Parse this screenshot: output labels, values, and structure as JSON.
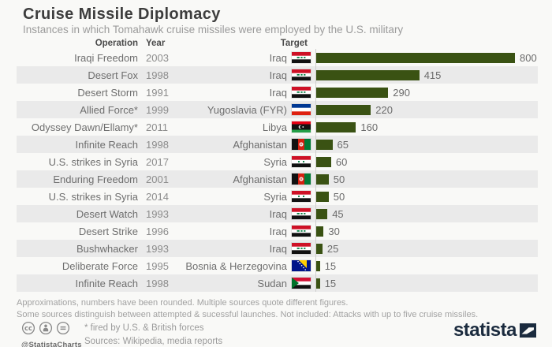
{
  "header": {
    "title": "Cruise Missile Diplomacy",
    "subtitle": "Instances in which Tomahawk cruise missiles were employed by the U.S. military"
  },
  "columns": {
    "operation": "Operation",
    "year": "Year",
    "target": "Target"
  },
  "chart_data": {
    "type": "bar",
    "orientation": "horizontal",
    "title": "Cruise Missile Diplomacy",
    "bar_color": "#3a5213",
    "value_range": [
      0,
      800
    ],
    "legend": "none",
    "grid": "off",
    "rows": [
      {
        "operation": "Iraqi Freedom",
        "year": "2003",
        "target": "Iraq",
        "flag": "iraq",
        "value": 800
      },
      {
        "operation": "Desert Fox",
        "year": "1998",
        "target": "Iraq",
        "flag": "iraq",
        "value": 415
      },
      {
        "operation": "Desert Storm",
        "year": "1991",
        "target": "Iraq",
        "flag": "iraq",
        "value": 290
      },
      {
        "operation": "Allied Force*",
        "year": "1999",
        "target": "Yugoslavia (FYR)",
        "flag": "yugoslavia",
        "value": 220
      },
      {
        "operation": "Odyssey Dawn/Ellamy*",
        "year": "2011",
        "target": "Libya",
        "flag": "libya",
        "value": 160
      },
      {
        "operation": "Infinite Reach",
        "year": "1998",
        "target": "Afghanistan",
        "flag": "afghanistan",
        "value": 65
      },
      {
        "operation": "U.S. strikes in Syria",
        "year": "2017",
        "target": "Syria",
        "flag": "syria",
        "value": 60
      },
      {
        "operation": "Enduring Freedom",
        "year": "2001",
        "target": "Afghanistan",
        "flag": "afghanistan",
        "value": 50
      },
      {
        "operation": "U.S. strikes in Syria",
        "year": "2014",
        "target": "Syria",
        "flag": "syria",
        "value": 50
      },
      {
        "operation": "Desert Watch",
        "year": "1993",
        "target": "Iraq",
        "flag": "iraq",
        "value": 45
      },
      {
        "operation": "Desert Strike",
        "year": "1996",
        "target": "Iraq",
        "flag": "iraq",
        "value": 30
      },
      {
        "operation": "Bushwhacker",
        "year": "1993",
        "target": "Iraq",
        "flag": "iraq",
        "value": 25
      },
      {
        "operation": "Deliberate Force",
        "year": "1995",
        "target": "Bosnia & Herzegovina",
        "flag": "bosnia",
        "value": 15
      },
      {
        "operation": "Infinite Reach",
        "year": "1998",
        "target": "Sudan",
        "flag": "sudan",
        "value": 15
      }
    ]
  },
  "notes": {
    "line1": "Approximations, numbers have been rounded. Multiple sources quote different figures.",
    "line2": "Some sources distinguish between attempted & sucessful launches. Not included: Attacks with up to five cruise missiles."
  },
  "footer": {
    "license_handle": "@StatistaCharts",
    "asterisk_note": "* fired by U.S. & British forces",
    "sources": "Sources: Wikipedia, media reports",
    "brand": "statista",
    "brand_color": "#1b2b3e"
  }
}
